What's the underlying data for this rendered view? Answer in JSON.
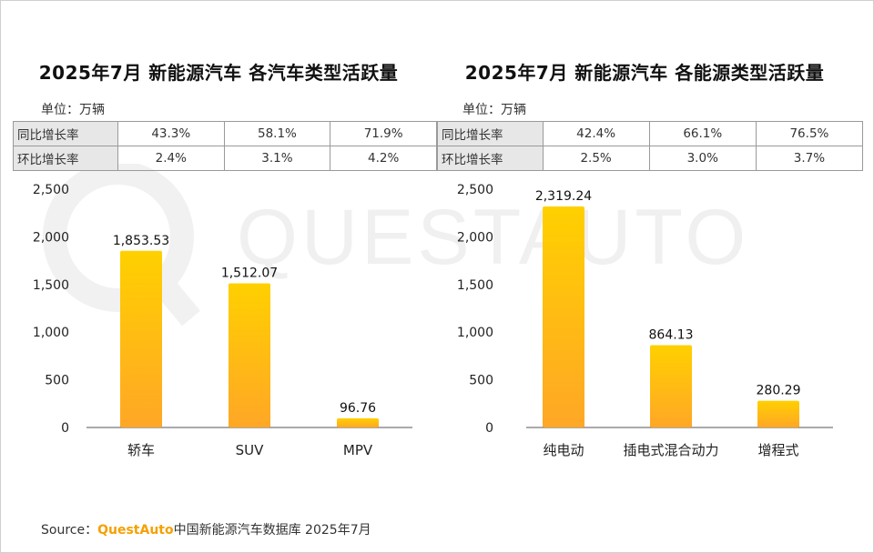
{
  "watermark": "QUESTAUTO",
  "colors": {
    "bar_top": "#ffd000",
    "bar_bottom": "#ffa726",
    "table_header_bg": "#e7e7e7",
    "brand": "#f5a000"
  },
  "footer": {
    "source_label": "Source：",
    "brand": "QuestAuto",
    "text": "中国新能源汽车数据库 2025年7月"
  },
  "left": {
    "title": "2025年7月 新能源汽车 各汽车类型活跃量",
    "unit_label": "单位：",
    "unit_value": "万辆",
    "table": {
      "rows": [
        {
          "label": "同比增长率",
          "values": [
            "43.3%",
            "58.1%",
            "71.9%"
          ]
        },
        {
          "label": "环比增长率",
          "values": [
            "2.4%",
            "3.1%",
            "4.2%"
          ]
        }
      ]
    }
  },
  "right": {
    "title": "2025年7月 新能源汽车 各能源类型活跃量",
    "unit_label": "单位：",
    "unit_value": "万辆",
    "table": {
      "rows": [
        {
          "label": "同比增长率",
          "values": [
            "42.4%",
            "66.1%",
            "76.5%"
          ]
        },
        {
          "label": "环比增长率",
          "values": [
            "2.5%",
            "3.0%",
            "3.7%"
          ]
        }
      ]
    }
  },
  "chart_data": [
    {
      "type": "bar",
      "categories": [
        "轿车",
        "SUV",
        "MPV"
      ],
      "values": [
        1853.53,
        1512.07,
        96.76
      ],
      "labels": [
        "1,853.53",
        "1,512.07",
        "96.76"
      ],
      "yticks": [
        "0",
        "500",
        "1,000",
        "1,500",
        "2,000",
        "2,500"
      ],
      "ylim": [
        0,
        2500
      ]
    },
    {
      "type": "bar",
      "categories": [
        "纯电动",
        "插电式混合动力",
        "增程式"
      ],
      "values": [
        2319.24,
        864.13,
        280.29
      ],
      "labels": [
        "2,319.24",
        "864.13",
        "280.29"
      ],
      "yticks": [
        "0",
        "500",
        "1,000",
        "1,500",
        "2,000",
        "2,500"
      ],
      "ylim": [
        0,
        2500
      ]
    }
  ]
}
